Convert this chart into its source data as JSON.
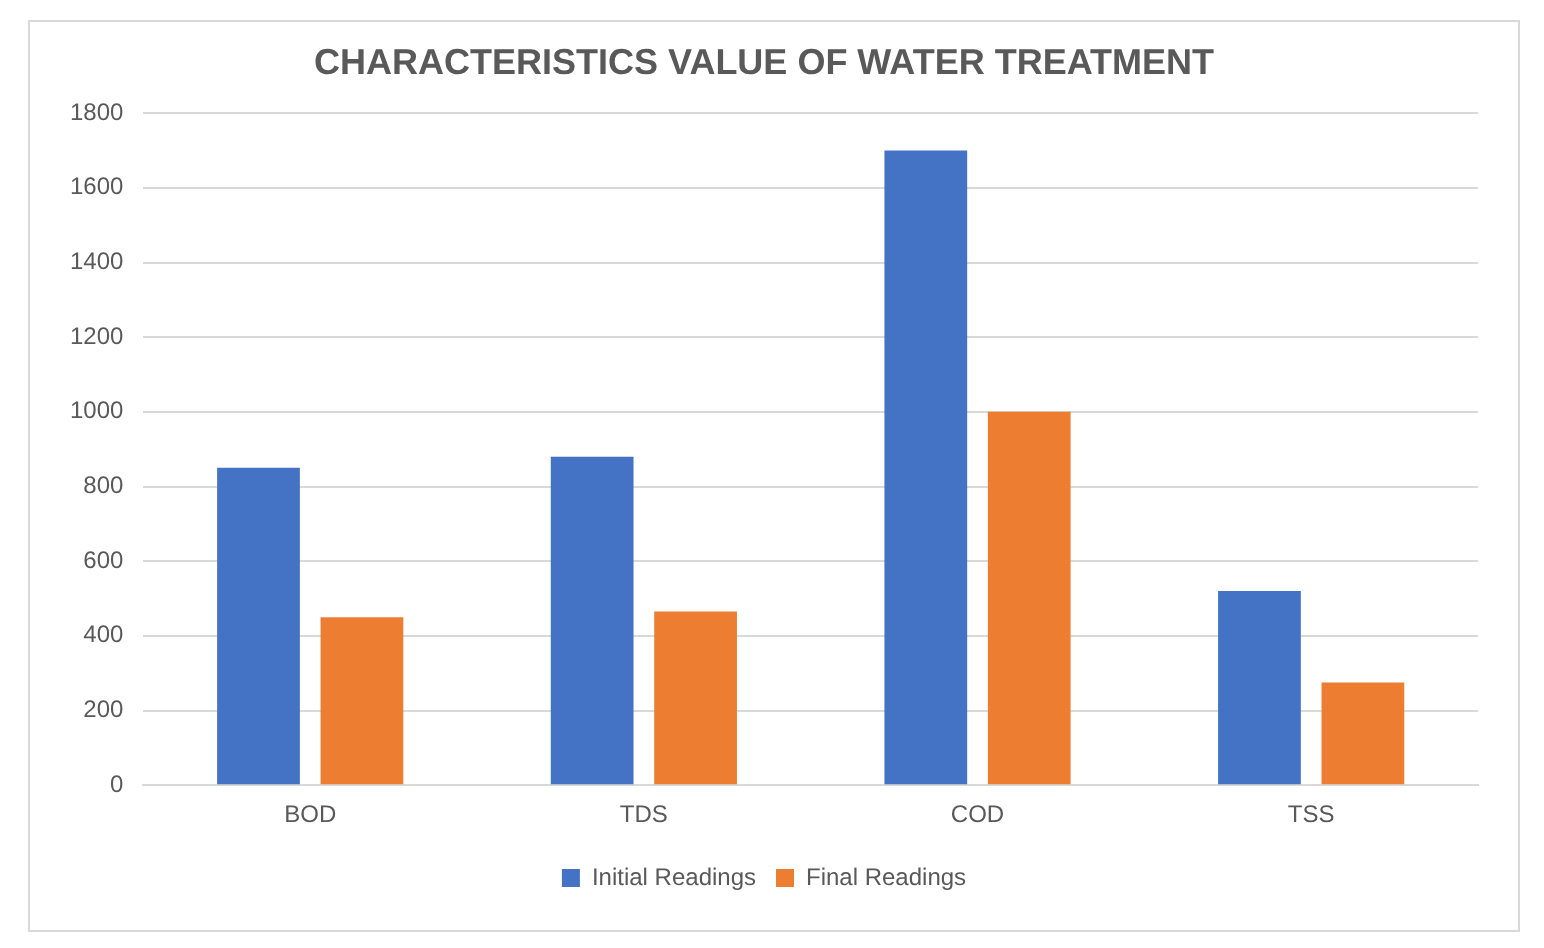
{
  "chart_data": {
    "type": "bar",
    "title": "CHARACTERISTICS VALUE OF WATER TREATMENT",
    "categories": [
      "BOD",
      "TDS",
      "COD",
      "TSS"
    ],
    "series": [
      {
        "name": "Initial Readings",
        "color": "#4472c4",
        "values": [
          850,
          880,
          1700,
          520
        ]
      },
      {
        "name": "Final Readings",
        "color": "#ed7d31",
        "values": [
          450,
          465,
          1000,
          275
        ]
      }
    ],
    "ylim": [
      0,
      1800
    ],
    "yticks": [
      0,
      200,
      400,
      600,
      800,
      1000,
      1200,
      1400,
      1600,
      1800
    ],
    "grid": "y",
    "legend": "bottom"
  }
}
